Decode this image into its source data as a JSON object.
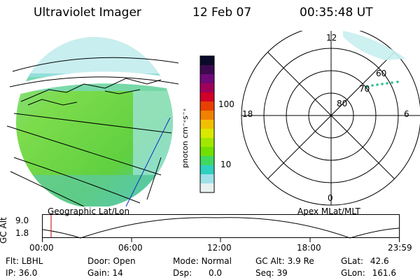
{
  "header": {
    "instrument": "Ultraviolet Imager",
    "date": "12 Feb 07",
    "time": "00:35:48 UT"
  },
  "colorbar": {
    "label": "photon cm⁻²s⁻¹",
    "ticks": [
      "100",
      "10"
    ],
    "colors": [
      "#0a0a2a",
      "#3c0a50",
      "#6e0a78",
      "#a0005a",
      "#d00028",
      "#e84000",
      "#f08000",
      "#f0c000",
      "#d8e800",
      "#a0e800",
      "#70e000",
      "#40d860",
      "#30d0c0",
      "#a0e0e8",
      "#e8f0f0"
    ]
  },
  "geo_map": {
    "label": "Geographic Lat/Lon"
  },
  "polar_plot": {
    "label": "Apex MLat/MLT",
    "mlt_labels": {
      "top": "12",
      "left": "18",
      "right": "6",
      "bottom": "0"
    },
    "lat_labels": [
      "60",
      "70",
      "80"
    ]
  },
  "alt_plot": {
    "ylabel": "GC Alt",
    "yticks": [
      "9.0",
      "1.8"
    ],
    "xticks": [
      "00:00",
      "06:00",
      "12:00",
      "18:00",
      "23:59"
    ]
  },
  "info": {
    "row1": [
      {
        "label": "Flt:",
        "value": "LBHL"
      },
      {
        "label": "Door:",
        "value": "Open"
      },
      {
        "label": "Mode:",
        "value": "Normal"
      },
      {
        "label": "GC Alt:",
        "value": "3.9 Re"
      },
      {
        "label": "GLat:",
        "value": "42.6"
      }
    ],
    "row2": [
      {
        "label": "IP:",
        "value": "36.0"
      },
      {
        "label": "Gain:",
        "value": "14"
      },
      {
        "label": "Dsp:",
        "value": "0.0"
      },
      {
        "label": "Seq:",
        "value": "39"
      },
      {
        "label": "GLon:",
        "value": "161.6"
      }
    ]
  }
}
